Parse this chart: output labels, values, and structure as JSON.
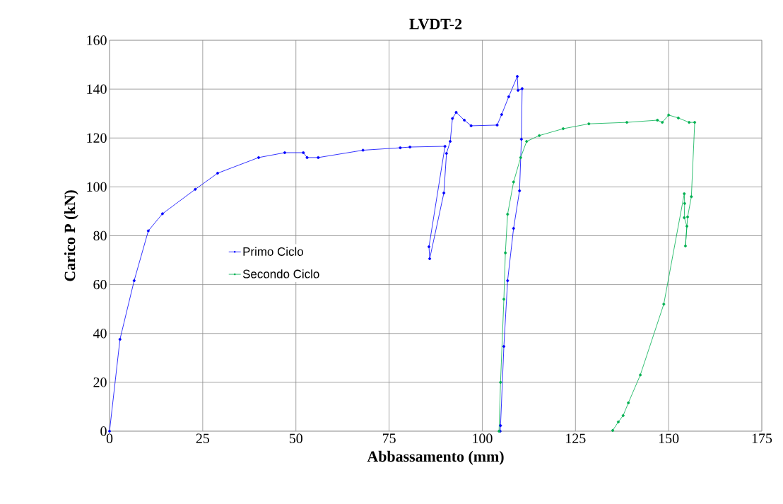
{
  "chart_data": {
    "type": "line",
    "title": "LVDT-2",
    "xlabel": "Abbassamento (mm)",
    "ylabel": "Carico P (kN)",
    "xlim": [
      0,
      175
    ],
    "ylim": [
      0,
      160
    ],
    "xticks": [
      0,
      25,
      50,
      75,
      100,
      125,
      150,
      175
    ],
    "yticks": [
      0,
      20,
      40,
      60,
      80,
      100,
      120,
      140,
      160
    ],
    "grid": true,
    "legend": "left",
    "marker": "circle",
    "line_style": "solid",
    "series": [
      {
        "name": "Primo Ciclo",
        "color": "#0000ff",
        "x": [
          0,
          2.8,
          6.6,
          10.4,
          14.2,
          23,
          29,
          40,
          47,
          52,
          53,
          56,
          68,
          78,
          80.6,
          90,
          85.7,
          85.9,
          89.7,
          90.4,
          91.4,
          92,
          93,
          95.2,
          97,
          104,
          105.2,
          107.1,
          109.4,
          109.6,
          110.7,
          110.5,
          110,
          108.4,
          106.8,
          105.8,
          104.9,
          104.8
        ],
        "values": [
          0,
          37.6,
          61.6,
          82,
          89,
          99,
          105.6,
          112,
          114,
          114,
          112,
          112,
          115,
          116,
          116.3,
          116.6,
          75.5,
          70.6,
          97.5,
          113.7,
          118.6,
          128,
          130.5,
          127.3,
          125,
          125.3,
          129.6,
          136.9,
          145.2,
          139.5,
          140.2,
          119.5,
          98.4,
          83,
          61.6,
          34.7,
          2.3,
          0
        ]
      },
      {
        "name": "Secondo Ciclo",
        "color": "#00b050",
        "x": [
          104.5,
          104.9,
          105.8,
          106.2,
          106.8,
          108.4,
          110.3,
          111.9,
          115.3,
          121.7,
          128.6,
          138.8,
          147,
          148.3,
          150,
          152.6,
          155.5,
          157,
          156.1,
          155.1,
          154.5,
          154.9,
          154.2,
          154.3,
          154.2,
          148.7,
          142.4,
          139.2,
          137.8,
          136.5,
          135
        ],
        "values": [
          0,
          20,
          54,
          73,
          88.8,
          102,
          112,
          118.6,
          121,
          123.8,
          125.8,
          126.4,
          127.3,
          126.4,
          129.4,
          128.2,
          126.4,
          126.4,
          96,
          87.7,
          75.8,
          83.9,
          87.4,
          93.2,
          97.2,
          52,
          23,
          11.6,
          6.4,
          3.8,
          0.3
        ]
      }
    ]
  }
}
